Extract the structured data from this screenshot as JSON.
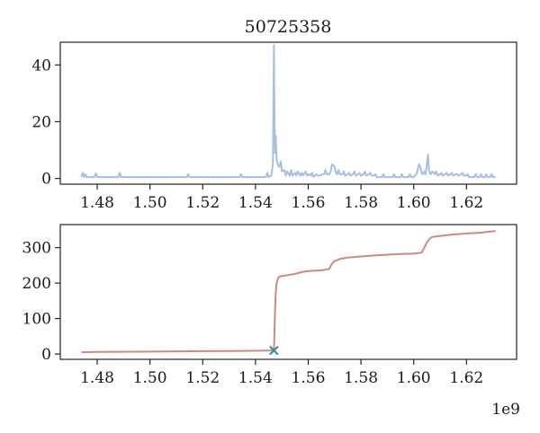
{
  "figure": {
    "title": "50725358",
    "x_offset_label": "1e9"
  },
  "chart_data": [
    {
      "type": "line",
      "title": "50725358",
      "xlabel": "",
      "ylabel": "",
      "xlim": [
        1.466,
        1.639
      ],
      "ylim": [
        -2,
        48
      ],
      "xticks": [
        1.48,
        1.5,
        1.52,
        1.54,
        1.56,
        1.58,
        1.6,
        1.62
      ],
      "xtick_labels": [
        "1.48",
        "1.50",
        "1.52",
        "1.54",
        "1.56",
        "1.58",
        "1.60",
        "1.62"
      ],
      "yticks": [
        0,
        20,
        40
      ],
      "ytick_labels": [
        "0",
        "20",
        "40"
      ],
      "x_scale_label": "1e9",
      "grid": false,
      "series": [
        {
          "color": "#a8bfe0",
          "x": [
            1.474,
            1.4745,
            1.475,
            1.4755,
            1.476,
            1.479,
            1.4795,
            1.48,
            1.488,
            1.4885,
            1.489,
            1.514,
            1.5145,
            1.515,
            1.534,
            1.5345,
            1.535,
            1.544,
            1.5445,
            1.545,
            1.546,
            1.5463,
            1.5466,
            1.547,
            1.5472,
            1.5474,
            1.5477,
            1.548,
            1.5484,
            1.549,
            1.5496,
            1.55,
            1.551,
            1.5515,
            1.552,
            1.553,
            1.5535,
            1.554,
            1.555,
            1.5555,
            1.556,
            1.557,
            1.5575,
            1.558,
            1.559,
            1.5595,
            1.56,
            1.561,
            1.5615,
            1.562,
            1.563,
            1.5635,
            1.564,
            1.566,
            1.5665,
            1.567,
            1.568,
            1.5685,
            1.569,
            1.5697,
            1.57,
            1.5705,
            1.571,
            1.5715,
            1.572,
            1.573,
            1.5735,
            1.574,
            1.575,
            1.5755,
            1.576,
            1.577,
            1.5775,
            1.578,
            1.579,
            1.5795,
            1.58,
            1.581,
            1.5815,
            1.582,
            1.583,
            1.5835,
            1.584,
            1.585,
            1.5855,
            1.586,
            1.588,
            1.5885,
            1.589,
            1.592,
            1.5925,
            1.593,
            1.595,
            1.5955,
            1.596,
            1.598,
            1.5985,
            1.599,
            1.6,
            1.6005,
            1.601,
            1.6015,
            1.602,
            1.6025,
            1.603,
            1.6035,
            1.604,
            1.6045,
            1.605,
            1.6054,
            1.6058,
            1.606,
            1.6065,
            1.607,
            1.6075,
            1.608,
            1.6085,
            1.609,
            1.61,
            1.6105,
            1.611,
            1.612,
            1.6125,
            1.613,
            1.614,
            1.6145,
            1.615,
            1.616,
            1.6165,
            1.617,
            1.618,
            1.6185,
            1.619,
            1.62,
            1.6205,
            1.621,
            1.623,
            1.6235,
            1.624,
            1.625,
            1.6255,
            1.626,
            1.627,
            1.6275,
            1.628,
            1.629,
            1.6295,
            1.63,
            1.631
          ],
          "y": [
            0.5,
            2,
            0.5,
            1.5,
            0.5,
            0.5,
            1.8,
            0.5,
            0.5,
            2,
            0.5,
            0.5,
            1.5,
            0.5,
            0.5,
            1.5,
            0.5,
            0.5,
            2,
            0.5,
            1,
            3,
            5,
            47,
            22,
            9,
            15,
            7,
            5,
            4,
            6,
            2.5,
            3,
            1,
            2.5,
            1,
            3,
            1,
            2,
            1,
            2.5,
            1,
            2,
            1,
            2.5,
            1,
            1.5,
            1,
            2,
            0.5,
            1.5,
            1,
            1,
            1.5,
            3,
            1.5,
            1.5,
            2.5,
            5,
            4.5,
            4,
            2,
            1.5,
            3,
            1.5,
            1.5,
            2.5,
            1,
            1.5,
            2,
            1,
            1.5,
            2.5,
            1,
            1.5,
            2,
            1,
            1.5,
            2.5,
            1,
            1.5,
            2,
            1,
            1,
            1.5,
            0.5,
            0.5,
            1.5,
            0.5,
            0.5,
            1.5,
            0.5,
            0.5,
            1.5,
            0.5,
            0.5,
            1.5,
            0.5,
            0.5,
            1,
            1.5,
            3,
            5,
            4,
            2,
            1.5,
            2.5,
            1.5,
            5,
            8.5,
            3,
            2,
            1.5,
            2.5,
            2,
            1.5,
            2.5,
            1,
            1.5,
            2,
            1,
            1.5,
            2,
            1,
            1.5,
            2,
            1,
            1.5,
            1.5,
            1,
            1.5,
            2,
            1,
            1,
            1.5,
            0.5,
            0.5,
            1.5,
            0.5,
            0.5,
            1.5,
            0.5,
            0.5,
            1.5,
            0.5,
            0.5,
            1.5,
            0.5,
            0.5
          ]
        }
      ]
    },
    {
      "type": "line",
      "title": "",
      "xlabel": "",
      "ylabel": "",
      "xlim": [
        1.466,
        1.639
      ],
      "ylim": [
        -15,
        365
      ],
      "xticks": [
        1.48,
        1.5,
        1.52,
        1.54,
        1.56,
        1.58,
        1.6,
        1.62
      ],
      "xtick_labels": [
        "1.48",
        "1.50",
        "1.52",
        "1.54",
        "1.56",
        "1.58",
        "1.60",
        "1.62"
      ],
      "yticks": [
        0,
        100,
        200,
        300
      ],
      "ytick_labels": [
        "0",
        "100",
        "200",
        "300"
      ],
      "x_scale_label": "1e9",
      "grid": false,
      "series": [
        {
          "color": "#c98b85",
          "x": [
            1.474,
            1.48,
            1.5,
            1.52,
            1.54,
            1.546,
            1.547,
            1.5472,
            1.5474,
            1.5476,
            1.5478,
            1.548,
            1.5485,
            1.549,
            1.55,
            1.552,
            1.555,
            1.558,
            1.56,
            1.565,
            1.568,
            1.569,
            1.57,
            1.572,
            1.575,
            1.58,
            1.585,
            1.59,
            1.595,
            1.6,
            1.603,
            1.604,
            1.605,
            1.606,
            1.607,
            1.61,
            1.615,
            1.62,
            1.625,
            1.631
          ],
          "y": [
            5,
            6,
            7,
            8,
            9,
            10,
            12,
            60,
            120,
            160,
            185,
            200,
            212,
            218,
            220,
            222,
            226,
            232,
            234,
            236,
            240,
            255,
            262,
            268,
            272,
            275,
            278,
            280,
            282,
            283,
            286,
            300,
            315,
            325,
            330,
            333,
            337,
            340,
            342,
            347
          ]
        }
      ],
      "marker": {
        "x": 1.547,
        "y": 10,
        "symbol": "x",
        "color": "#3a8f95"
      }
    }
  ]
}
